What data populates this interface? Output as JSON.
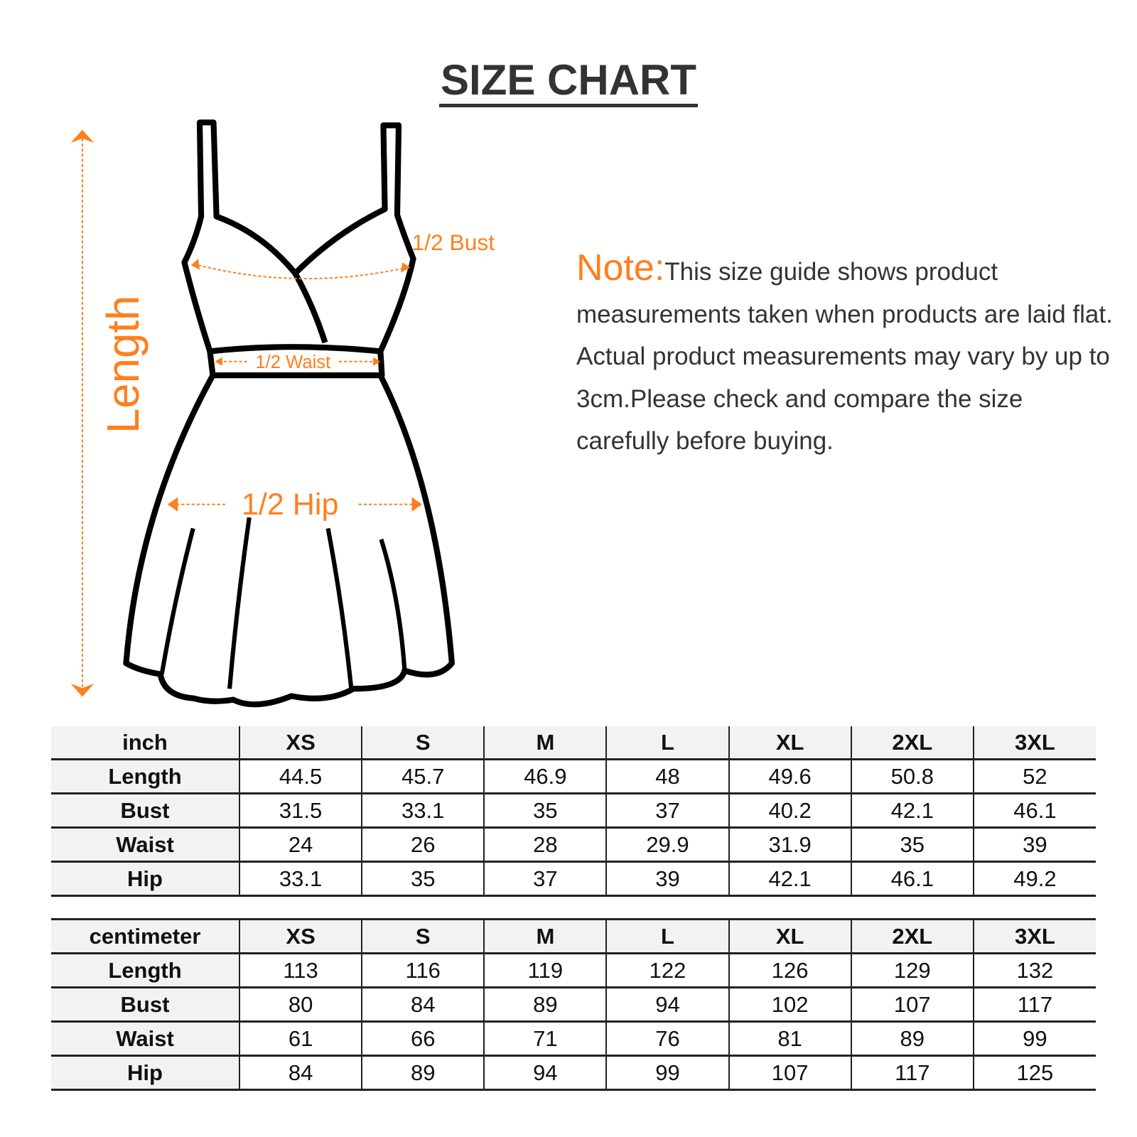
{
  "title": "SIZE CHART",
  "diagram": {
    "length": "Length",
    "bust": "1/2 Bust",
    "waist": "1/2 Waist",
    "hip": "1/2 Hip",
    "accent": "#ff7f1e"
  },
  "note": {
    "label": "Note:",
    "text": "This size guide shows product measurements taken when products are laid flat. Actual product measurements may vary by up to 3cm.Please check and compare the size carefully before buying."
  },
  "sizes": [
    "XS",
    "S",
    "M",
    "L",
    "XL",
    "2XL",
    "3XL"
  ],
  "inch": {
    "unit": "inch",
    "rows": [
      {
        "label": "Length",
        "values": [
          "44.5",
          "45.7",
          "46.9",
          "48",
          "49.6",
          "50.8",
          "52"
        ]
      },
      {
        "label": "Bust",
        "values": [
          "31.5",
          "33.1",
          "35",
          "37",
          "40.2",
          "42.1",
          "46.1"
        ]
      },
      {
        "label": "Waist",
        "values": [
          "24",
          "26",
          "28",
          "29.9",
          "31.9",
          "35",
          "39"
        ]
      },
      {
        "label": "Hip",
        "values": [
          "33.1",
          "35",
          "37",
          "39",
          "42.1",
          "46.1",
          "49.2"
        ]
      }
    ]
  },
  "cm": {
    "unit": "centimeter",
    "rows": [
      {
        "label": "Length",
        "values": [
          "113",
          "116",
          "119",
          "122",
          "126",
          "129",
          "132"
        ]
      },
      {
        "label": "Bust",
        "values": [
          "80",
          "84",
          "89",
          "94",
          "102",
          "107",
          "117"
        ]
      },
      {
        "label": "Waist",
        "values": [
          "61",
          "66",
          "71",
          "76",
          "81",
          "89",
          "99"
        ]
      },
      {
        "label": "Hip",
        "values": [
          "84",
          "89",
          "94",
          "99",
          "107",
          "117",
          "125"
        ]
      }
    ]
  }
}
